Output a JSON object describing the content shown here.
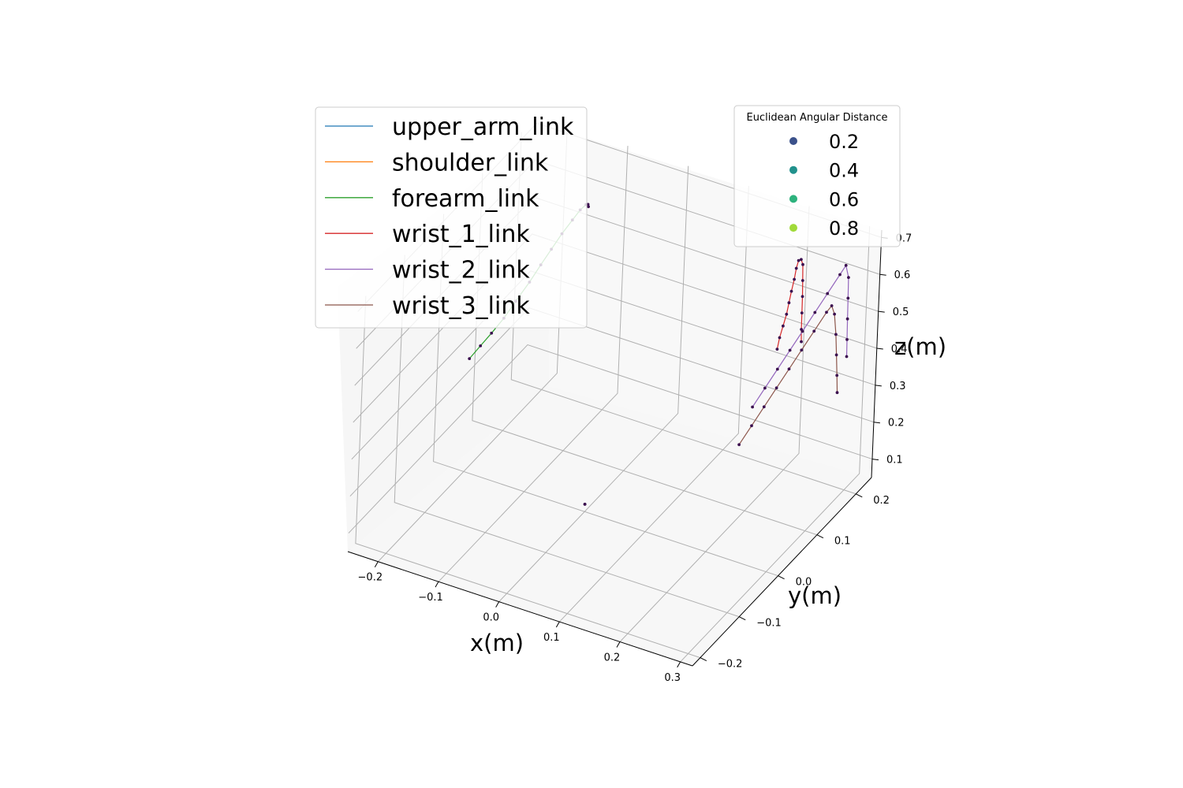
{
  "chart_data": {
    "type": "line",
    "projection": "3d",
    "xlabel": "x(m)",
    "ylabel": "y(m)",
    "zlabel": "z(m)",
    "x_ticks": [
      "−0.2",
      "−0.1",
      "0.0",
      "0.1",
      "0.2",
      "0.3"
    ],
    "y_ticks": [
      "−0.2",
      "−0.1",
      "0.0",
      "0.1",
      "0.2"
    ],
    "z_ticks": [
      "0.1",
      "0.2",
      "0.3",
      "0.4",
      "0.5",
      "0.6",
      "0.7"
    ],
    "xlim": [
      -0.25,
      0.32
    ],
    "ylim": [
      -0.22,
      0.24
    ],
    "zlim": [
      0.05,
      0.72
    ],
    "grid": true,
    "legend_links": {
      "placement": "top-left",
      "entries": [
        {
          "name": "upper_arm_link",
          "color": "#1f77b4"
        },
        {
          "name": "shoulder_link",
          "color": "#ff7f0e"
        },
        {
          "name": "forearm_link",
          "color": "#2ca02c"
        },
        {
          "name": "wrist_1_link",
          "color": "#d62728"
        },
        {
          "name": "wrist_2_link",
          "color": "#9467bd"
        },
        {
          "name": "wrist_3_link",
          "color": "#8c564b"
        }
      ]
    },
    "legend_distance": {
      "placement": "top-right",
      "title": "Euclidean Angular Distance",
      "entries": [
        {
          "label": "0.2",
          "color": "#3b518b"
        },
        {
          "label": "0.4",
          "color": "#21918c"
        },
        {
          "label": "0.6",
          "color": "#2db27d"
        },
        {
          "label": "0.8",
          "color": "#a0da39"
        }
      ]
    },
    "series": [
      {
        "name": "upper_arm_link",
        "color": "#1f77b4",
        "points": [
          [
            0.0,
            0.0,
            0.07
          ]
        ]
      },
      {
        "name": "shoulder_link",
        "color": "#ff7f0e",
        "points": [
          [
            0.0,
            0.0,
            0.07
          ]
        ]
      },
      {
        "name": "forearm_link",
        "color": "#2ca02c",
        "points": [
          [
            -0.18,
            -0.03,
            0.4
          ],
          [
            -0.175,
            -0.01,
            0.415
          ],
          [
            -0.17,
            0.01,
            0.43
          ],
          [
            -0.166,
            0.035,
            0.445
          ],
          [
            -0.163,
            0.06,
            0.465
          ],
          [
            -0.16,
            0.09,
            0.485
          ],
          [
            -0.158,
            0.115,
            0.505
          ],
          [
            -0.157,
            0.14,
            0.52
          ],
          [
            -0.156,
            0.165,
            0.535
          ],
          [
            -0.155,
            0.19,
            0.545
          ],
          [
            -0.155,
            0.21,
            0.55
          ],
          [
            -0.155,
            0.225,
            0.548
          ],
          [
            -0.156,
            0.232,
            0.54
          ],
          [
            -0.157,
            0.235,
            0.53
          ]
        ]
      },
      {
        "name": "wrist_1_link",
        "color": "#d62728",
        "points": [
          [
            0.2,
            0.17,
            0.41
          ],
          [
            0.202,
            0.172,
            0.44
          ],
          [
            0.205,
            0.175,
            0.47
          ],
          [
            0.208,
            0.178,
            0.5
          ],
          [
            0.21,
            0.18,
            0.53
          ],
          [
            0.212,
            0.182,
            0.56
          ],
          [
            0.214,
            0.185,
            0.59
          ],
          [
            0.216,
            0.186,
            0.62
          ],
          [
            0.218,
            0.188,
            0.64
          ],
          [
            0.221,
            0.19,
            0.642
          ],
          [
            0.224,
            0.19,
            0.63
          ],
          [
            0.226,
            0.188,
            0.59
          ],
          [
            0.228,
            0.186,
            0.55
          ],
          [
            0.23,
            0.183,
            0.51
          ],
          [
            0.232,
            0.18,
            0.47
          ],
          [
            0.234,
            0.178,
            0.44
          ]
        ]
      },
      {
        "name": "wrist_2_link",
        "color": "#9467bd",
        "points": [
          [
            0.2,
            0.11,
            0.32
          ],
          [
            0.21,
            0.125,
            0.36
          ],
          [
            0.22,
            0.14,
            0.4
          ],
          [
            0.23,
            0.155,
            0.44
          ],
          [
            0.24,
            0.17,
            0.48
          ],
          [
            0.25,
            0.185,
            0.52
          ],
          [
            0.26,
            0.2,
            0.56
          ],
          [
            0.27,
            0.215,
            0.6
          ],
          [
            0.275,
            0.222,
            0.62
          ],
          [
            0.28,
            0.222,
            0.59
          ],
          [
            0.283,
            0.218,
            0.54
          ],
          [
            0.286,
            0.214,
            0.49
          ],
          [
            0.289,
            0.21,
            0.44
          ],
          [
            0.292,
            0.206,
            0.4
          ]
        ]
      },
      {
        "name": "wrist_3_link",
        "color": "#8c564b",
        "points": [
          [
            0.205,
            0.07,
            0.265
          ],
          [
            0.215,
            0.085,
            0.305
          ],
          [
            0.225,
            0.1,
            0.345
          ],
          [
            0.235,
            0.115,
            0.385
          ],
          [
            0.245,
            0.13,
            0.425
          ],
          [
            0.255,
            0.145,
            0.465
          ],
          [
            0.265,
            0.16,
            0.505
          ],
          [
            0.275,
            0.175,
            0.545
          ],
          [
            0.28,
            0.18,
            0.56
          ],
          [
            0.285,
            0.18,
            0.54
          ],
          [
            0.29,
            0.178,
            0.49
          ],
          [
            0.294,
            0.175,
            0.44
          ],
          [
            0.298,
            0.172,
            0.39
          ],
          [
            0.302,
            0.168,
            0.35
          ]
        ]
      }
    ]
  }
}
